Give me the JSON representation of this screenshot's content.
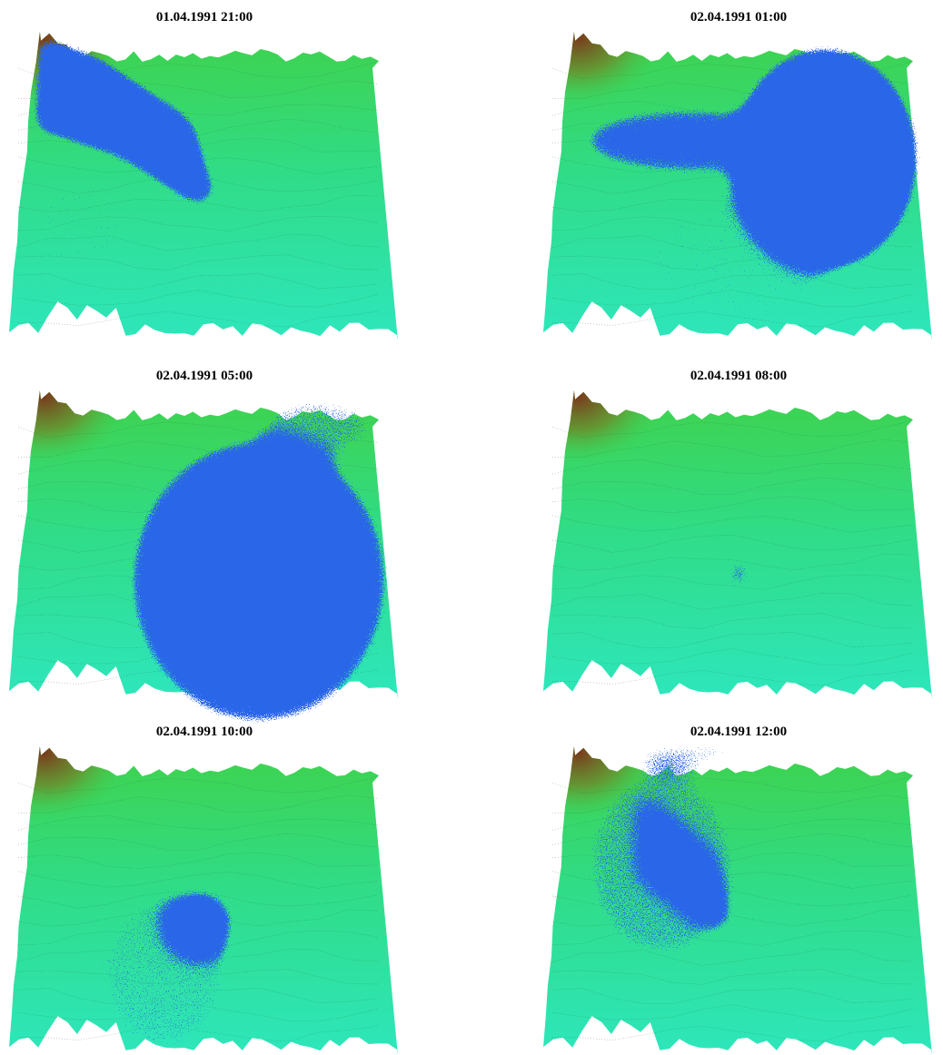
{
  "panels": [
    {
      "title": "01.04.1991 21:00"
    },
    {
      "title": "02.04.1991 01:00"
    },
    {
      "title": "02.04.1991 05:00"
    },
    {
      "title": "02.04.1991 08:00"
    },
    {
      "title": "02.04.1991 10:00"
    },
    {
      "title": "02.04.1991 12:00"
    }
  ]
}
